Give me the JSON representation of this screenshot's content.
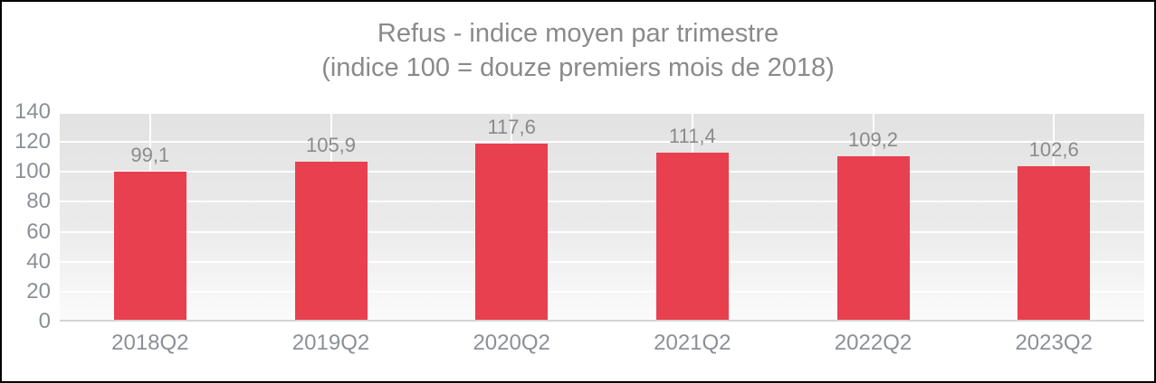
{
  "chart_data": {
    "type": "bar",
    "title_line1": "Refus - indice moyen par trimestre",
    "title_line2": "(indice 100 = douze premiers mois de 2018)",
    "categories": [
      "2018Q2",
      "2019Q2",
      "2020Q2",
      "2021Q2",
      "2022Q2",
      "2023Q2"
    ],
    "values": [
      99.1,
      105.9,
      117.6,
      111.4,
      109.2,
      102.6
    ],
    "value_labels": [
      "99,1",
      "105,9",
      "117,6",
      "111,4",
      "109,2",
      "102,6"
    ],
    "series_name": "Refus - indice moyen",
    "xlabel": "",
    "ylabel": "",
    "ylim": [
      0,
      140
    ],
    "yticks": [
      0,
      20,
      40,
      60,
      80,
      100,
      120,
      140
    ],
    "grid": "horizontal ticks + vertical category-center lines, white on gray gradient",
    "legend": "none",
    "colors": {
      "bar": "#e8404e",
      "title_text": "#8a8a8a",
      "data_label_text": "#8a8a8a",
      "axis_tick_text": "#8b9097",
      "gridline": "#ffffff",
      "axis_line": "#d4d4d4",
      "plot_bg_top": "#e2e2e2",
      "plot_bg_bottom": "#fbfbfb",
      "frame_border": "#000000",
      "background": "#ffffff"
    }
  }
}
